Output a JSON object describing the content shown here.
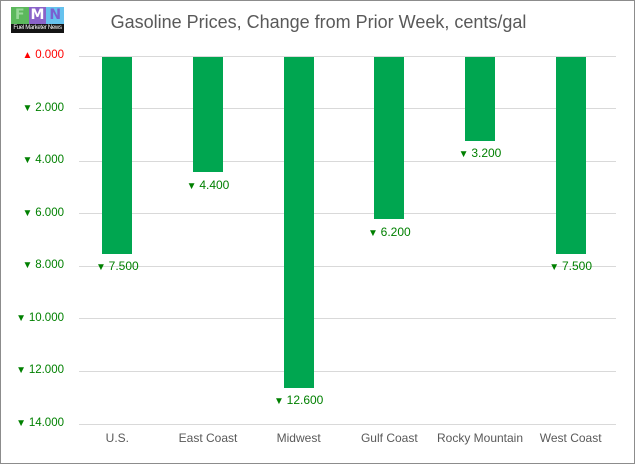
{
  "logo": {
    "letters": [
      {
        "char": "F",
        "bg": "#5cb85c",
        "fg": "#9ad89a"
      },
      {
        "char": "M",
        "bg": "#8a63c9",
        "fg": "#ffffff"
      },
      {
        "char": "N",
        "bg": "#66c2ee",
        "fg": "#7a5fd0"
      }
    ],
    "caption": "Fuel Marketer News"
  },
  "chart_data": {
    "type": "bar",
    "title": "Gasoline Prices, Change from Prior Week, cents/gal",
    "categories": [
      "U.S.",
      "East Coast",
      "Midwest",
      "Gulf Coast",
      "Rocky Mountain",
      "West Coast"
    ],
    "values": [
      -7.5,
      -4.4,
      -12.6,
      -6.2,
      -3.2,
      -7.5
    ],
    "data_labels": [
      "7.500",
      "4.400",
      "12.600",
      "6.200",
      "3.200",
      "7.500"
    ],
    "data_label_arrow": "▼",
    "y_axis": {
      "min": 0,
      "max": 14,
      "tick_step": 2,
      "direction": "increases-downward",
      "ticks": [
        {
          "value": 0,
          "label": "0.000",
          "arrow": "▲",
          "color": "#ff0000"
        },
        {
          "value": 2,
          "label": "2.000",
          "arrow": "▼",
          "color": "#008000"
        },
        {
          "value": 4,
          "label": "4.000",
          "arrow": "▼",
          "color": "#008000"
        },
        {
          "value": 6,
          "label": "6.000",
          "arrow": "▼",
          "color": "#008000"
        },
        {
          "value": 8,
          "label": "8.000",
          "arrow": "▼",
          "color": "#008000"
        },
        {
          "value": 10,
          "label": "10.000",
          "arrow": "▼",
          "color": "#008000"
        },
        {
          "value": 12,
          "label": "12.000",
          "arrow": "▼",
          "color": "#008000"
        },
        {
          "value": 14,
          "label": "14.000",
          "arrow": "▼",
          "color": "#008000"
        }
      ]
    },
    "xlabel": "",
    "ylabel": "",
    "grid": true,
    "legend": false,
    "bar_color": "#00a650",
    "data_label_color": "#008000",
    "title_color": "#595959",
    "category_color": "#595959",
    "gridline_color": "#d9d9d9"
  }
}
